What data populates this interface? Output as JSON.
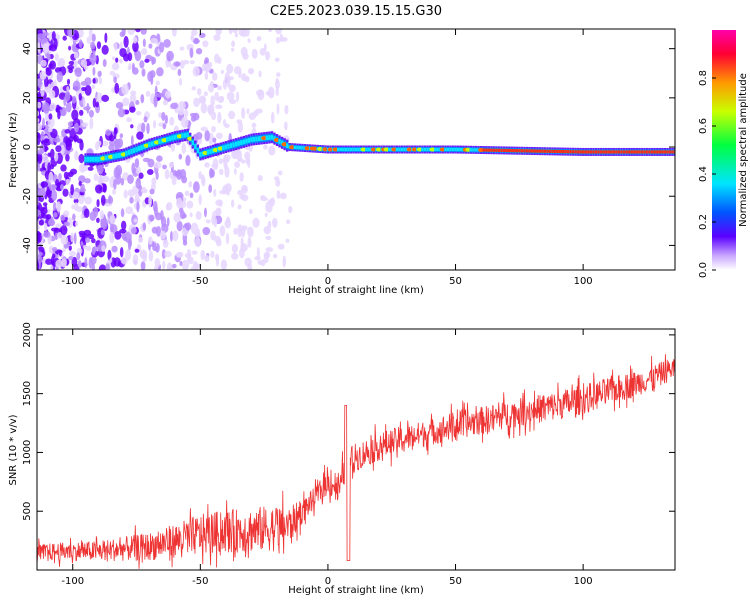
{
  "title": "C2E5.2023.039.15.15.G30",
  "chart_data": [
    {
      "type": "heatmap",
      "xlabel": "Height of straight line (km)",
      "ylabel": "Frequency (Hz)",
      "xlim": [
        -114,
        136
      ],
      "ylim": [
        -50,
        48
      ],
      "xticks": [
        -100,
        -50,
        0,
        50,
        100
      ],
      "xtick_labels": [
        "-100",
        "-50",
        "0",
        "50",
        "100"
      ],
      "yticks": [
        -40,
        -20,
        0,
        20,
        40
      ],
      "ytick_labels": [
        "-40",
        "-20",
        "0",
        "20",
        "40"
      ],
      "colorbar": {
        "label": "Normalized spectral amplitude",
        "range": [
          0,
          1
        ],
        "ticks": [
          0.0,
          0.2,
          0.4,
          0.6,
          0.8
        ],
        "tick_labels": [
          "0.0",
          "0.2",
          "0.4",
          "0.6",
          "0.8"
        ],
        "colors": [
          "#ffffff",
          "#5a00ff",
          "#0055ff",
          "#00e5ff",
          "#00ff40",
          "#c8ff00",
          "#ff9900",
          "#ff0033",
          "#ff00aa"
        ]
      },
      "ridge": [
        {
          "x": -90,
          "f": -5
        },
        {
          "x": -80,
          "f": -3
        },
        {
          "x": -70,
          "f": 1
        },
        {
          "x": -60,
          "f": 4
        },
        {
          "x": -55,
          "f": 5
        },
        {
          "x": -50,
          "f": -3
        },
        {
          "x": -40,
          "f": 0
        },
        {
          "x": -30,
          "f": 3
        },
        {
          "x": -22,
          "f": 4
        },
        {
          "x": -15,
          "f": 0
        },
        {
          "x": 0,
          "f": -1
        },
        {
          "x": 50,
          "f": -1
        },
        {
          "x": 100,
          "f": -2
        },
        {
          "x": 136,
          "f": -2
        }
      ],
      "grid": false
    },
    {
      "type": "line",
      "xlabel": "Height of straight line (km)",
      "ylabel": "SNR (10 * v/v)",
      "xlim": [
        -114,
        136
      ],
      "ylim": [
        0,
        2050
      ],
      "xticks": [
        -100,
        -50,
        0,
        50,
        100
      ],
      "xtick_labels": [
        "-100",
        "-50",
        "0",
        "50",
        "100"
      ],
      "yticks": [
        500,
        1000,
        1500,
        2000
      ],
      "ytick_labels": [
        "500",
        "1000",
        "1500",
        "2000"
      ],
      "series": [
        {
          "color": "#ee3333",
          "x": [
            -114,
            -100,
            -90,
            -80,
            -70,
            -60,
            -50,
            -40,
            -30,
            -20,
            -15,
            -10,
            -5,
            0,
            5,
            7,
            10,
            20,
            30,
            40,
            50,
            60,
            70,
            80,
            90,
            100,
            110,
            120,
            130,
            136
          ],
          "y": [
            150,
            160,
            160,
            180,
            200,
            250,
            300,
            330,
            340,
            360,
            380,
            500,
            620,
            750,
            700,
            900,
            950,
            1050,
            1120,
            1170,
            1230,
            1270,
            1320,
            1360,
            1400,
            1450,
            1520,
            1580,
            1660,
            1730
          ],
          "spread": [
            90,
            100,
            110,
            130,
            150,
            180,
            220,
            230,
            240,
            250,
            200,
            130,
            110,
            140,
            180,
            180,
            150,
            150,
            140,
            140,
            150,
            150,
            150,
            150,
            160,
            160,
            150,
            140,
            130,
            120
          ]
        }
      ],
      "grid": false
    }
  ]
}
